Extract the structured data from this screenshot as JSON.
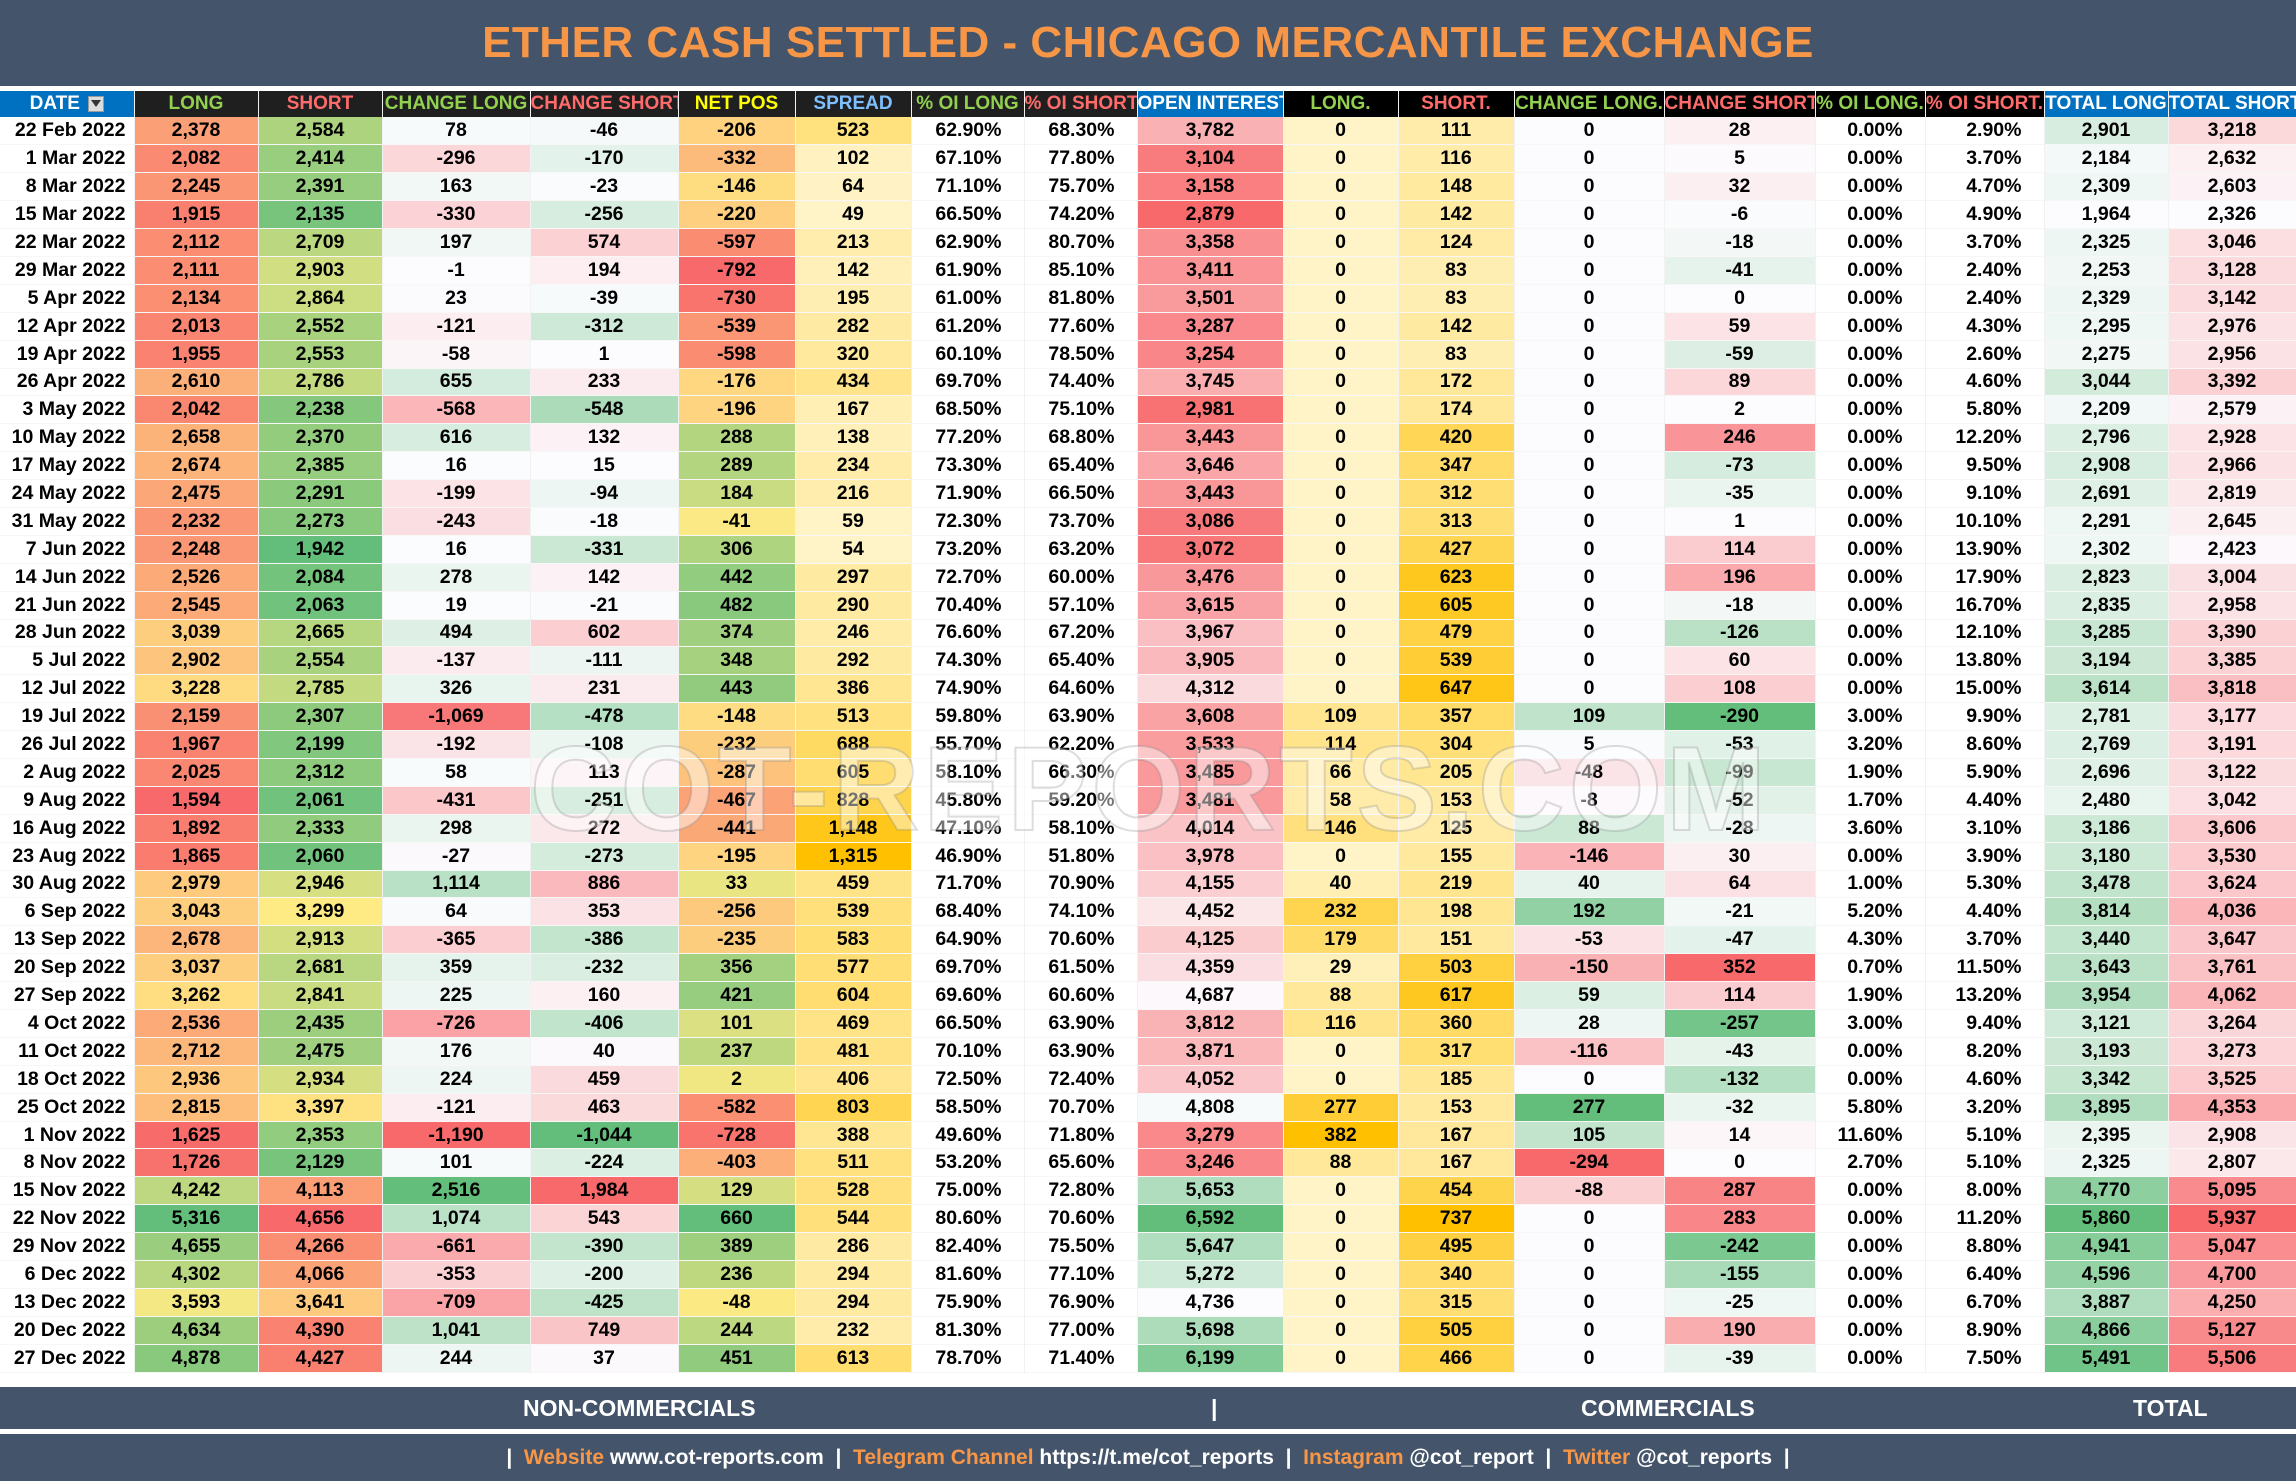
{
  "title": "ETHER CASH SETTLED - CHICAGO MERCANTILE EXCHANGE",
  "watermark": "COT-REPORTS.COM",
  "headers": [
    {
      "label": "DATE",
      "color": "#ffffff",
      "style": "date"
    },
    {
      "label": "LONG",
      "color": "#92d050",
      "style": "dark"
    },
    {
      "label": "SHORT",
      "color": "#ff6b6b",
      "style": "dark"
    },
    {
      "label": "CHANGE LONG",
      "color": "#92d050",
      "style": "dark"
    },
    {
      "label": "CHANGE SHORT",
      "color": "#ff6b6b",
      "style": "dark"
    },
    {
      "label": "NET POS",
      "color": "#ffff00",
      "style": "dark"
    },
    {
      "label": "SPREAD",
      "color": "#7fbfff",
      "style": "dark"
    },
    {
      "label": "% OI LONG",
      "color": "#92d050",
      "style": "dark"
    },
    {
      "label": "% OI SHORT",
      "color": "#ff6b6b",
      "style": "dark"
    },
    {
      "label": "OPEN INTEREST",
      "color": "#ffffff",
      "style": "blue"
    },
    {
      "label": "LONG.",
      "color": "#92d050",
      "style": "black"
    },
    {
      "label": "SHORT.",
      "color": "#ff6b6b",
      "style": "black"
    },
    {
      "label": "CHANGE LONG.",
      "color": "#92d050",
      "style": "black"
    },
    {
      "label": "CHANGE SHORT.",
      "color": "#ff6b6b",
      "style": "black"
    },
    {
      "label": "% OI LONG.",
      "color": "#92d050",
      "style": "black"
    },
    {
      "label": "% OI SHORT.",
      "color": "#ff6b6b",
      "style": "black"
    },
    {
      "label": "TOTAL LONG",
      "color": "#ffffff",
      "style": "blue"
    },
    {
      "label": "TOTAL SHORT",
      "color": "#ffffff",
      "style": "blue"
    }
  ],
  "rows": [
    [
      "22 Feb 2022",
      "2,378",
      "2,584",
      "78",
      "-46",
      "-206",
      "523",
      "62.90%",
      "68.30%",
      "3,782",
      "0",
      "111",
      "0",
      "28",
      "0.00%",
      "2.90%",
      "2,901",
      "3,218"
    ],
    [
      "1 Mar 2022",
      "2,082",
      "2,414",
      "-296",
      "-170",
      "-332",
      "102",
      "67.10%",
      "77.80%",
      "3,104",
      "0",
      "116",
      "0",
      "5",
      "0.00%",
      "3.70%",
      "2,184",
      "2,632"
    ],
    [
      "8 Mar 2022",
      "2,245",
      "2,391",
      "163",
      "-23",
      "-146",
      "64",
      "71.10%",
      "75.70%",
      "3,158",
      "0",
      "148",
      "0",
      "32",
      "0.00%",
      "4.70%",
      "2,309",
      "2,603"
    ],
    [
      "15 Mar 2022",
      "1,915",
      "2,135",
      "-330",
      "-256",
      "-220",
      "49",
      "66.50%",
      "74.20%",
      "2,879",
      "0",
      "142",
      "0",
      "-6",
      "0.00%",
      "4.90%",
      "1,964",
      "2,326"
    ],
    [
      "22 Mar 2022",
      "2,112",
      "2,709",
      "197",
      "574",
      "-597",
      "213",
      "62.90%",
      "80.70%",
      "3,358",
      "0",
      "124",
      "0",
      "-18",
      "0.00%",
      "3.70%",
      "2,325",
      "3,046"
    ],
    [
      "29 Mar 2022",
      "2,111",
      "2,903",
      "-1",
      "194",
      "-792",
      "142",
      "61.90%",
      "85.10%",
      "3,411",
      "0",
      "83",
      "0",
      "-41",
      "0.00%",
      "2.40%",
      "2,253",
      "3,128"
    ],
    [
      "5 Apr 2022",
      "2,134",
      "2,864",
      "23",
      "-39",
      "-730",
      "195",
      "61.00%",
      "81.80%",
      "3,501",
      "0",
      "83",
      "0",
      "0",
      "0.00%",
      "2.40%",
      "2,329",
      "3,142"
    ],
    [
      "12 Apr 2022",
      "2,013",
      "2,552",
      "-121",
      "-312",
      "-539",
      "282",
      "61.20%",
      "77.60%",
      "3,287",
      "0",
      "142",
      "0",
      "59",
      "0.00%",
      "4.30%",
      "2,295",
      "2,976"
    ],
    [
      "19 Apr 2022",
      "1,955",
      "2,553",
      "-58",
      "1",
      "-598",
      "320",
      "60.10%",
      "78.50%",
      "3,254",
      "0",
      "83",
      "0",
      "-59",
      "0.00%",
      "2.60%",
      "2,275",
      "2,956"
    ],
    [
      "26 Apr 2022",
      "2,610",
      "2,786",
      "655",
      "233",
      "-176",
      "434",
      "69.70%",
      "74.40%",
      "3,745",
      "0",
      "172",
      "0",
      "89",
      "0.00%",
      "4.60%",
      "3,044",
      "3,392"
    ],
    [
      "3 May 2022",
      "2,042",
      "2,238",
      "-568",
      "-548",
      "-196",
      "167",
      "68.50%",
      "75.10%",
      "2,981",
      "0",
      "174",
      "0",
      "2",
      "0.00%",
      "5.80%",
      "2,209",
      "2,579"
    ],
    [
      "10 May 2022",
      "2,658",
      "2,370",
      "616",
      "132",
      "288",
      "138",
      "77.20%",
      "68.80%",
      "3,443",
      "0",
      "420",
      "0",
      "246",
      "0.00%",
      "12.20%",
      "2,796",
      "2,928"
    ],
    [
      "17 May 2022",
      "2,674",
      "2,385",
      "16",
      "15",
      "289",
      "234",
      "73.30%",
      "65.40%",
      "3,646",
      "0",
      "347",
      "0",
      "-73",
      "0.00%",
      "9.50%",
      "2,908",
      "2,966"
    ],
    [
      "24 May 2022",
      "2,475",
      "2,291",
      "-199",
      "-94",
      "184",
      "216",
      "71.90%",
      "66.50%",
      "3,443",
      "0",
      "312",
      "0",
      "-35",
      "0.00%",
      "9.10%",
      "2,691",
      "2,819"
    ],
    [
      "31 May 2022",
      "2,232",
      "2,273",
      "-243",
      "-18",
      "-41",
      "59",
      "72.30%",
      "73.70%",
      "3,086",
      "0",
      "313",
      "0",
      "1",
      "0.00%",
      "10.10%",
      "2,291",
      "2,645"
    ],
    [
      "7 Jun 2022",
      "2,248",
      "1,942",
      "16",
      "-331",
      "306",
      "54",
      "73.20%",
      "63.20%",
      "3,072",
      "0",
      "427",
      "0",
      "114",
      "0.00%",
      "13.90%",
      "2,302",
      "2,423"
    ],
    [
      "14 Jun 2022",
      "2,526",
      "2,084",
      "278",
      "142",
      "442",
      "297",
      "72.70%",
      "60.00%",
      "3,476",
      "0",
      "623",
      "0",
      "196",
      "0.00%",
      "17.90%",
      "2,823",
      "3,004"
    ],
    [
      "21 Jun 2022",
      "2,545",
      "2,063",
      "19",
      "-21",
      "482",
      "290",
      "70.40%",
      "57.10%",
      "3,615",
      "0",
      "605",
      "0",
      "-18",
      "0.00%",
      "16.70%",
      "2,835",
      "2,958"
    ],
    [
      "28 Jun 2022",
      "3,039",
      "2,665",
      "494",
      "602",
      "374",
      "246",
      "76.60%",
      "67.20%",
      "3,967",
      "0",
      "479",
      "0",
      "-126",
      "0.00%",
      "12.10%",
      "3,285",
      "3,390"
    ],
    [
      "5 Jul 2022",
      "2,902",
      "2,554",
      "-137",
      "-111",
      "348",
      "292",
      "74.30%",
      "65.40%",
      "3,905",
      "0",
      "539",
      "0",
      "60",
      "0.00%",
      "13.80%",
      "3,194",
      "3,385"
    ],
    [
      "12 Jul 2022",
      "3,228",
      "2,785",
      "326",
      "231",
      "443",
      "386",
      "74.90%",
      "64.60%",
      "4,312",
      "0",
      "647",
      "0",
      "108",
      "0.00%",
      "15.00%",
      "3,614",
      "3,818"
    ],
    [
      "19 Jul 2022",
      "2,159",
      "2,307",
      "-1,069",
      "-478",
      "-148",
      "513",
      "59.80%",
      "63.90%",
      "3,608",
      "109",
      "357",
      "109",
      "-290",
      "3.00%",
      "9.90%",
      "2,781",
      "3,177"
    ],
    [
      "26 Jul 2022",
      "1,967",
      "2,199",
      "-192",
      "-108",
      "-232",
      "688",
      "55.70%",
      "62.20%",
      "3,533",
      "114",
      "304",
      "5",
      "-53",
      "3.20%",
      "8.60%",
      "2,769",
      "3,191"
    ],
    [
      "2 Aug 2022",
      "2,025",
      "2,312",
      "58",
      "113",
      "-287",
      "605",
      "58.10%",
      "66.30%",
      "3,485",
      "66",
      "205",
      "-48",
      "-99",
      "1.90%",
      "5.90%",
      "2,696",
      "3,122"
    ],
    [
      "9 Aug 2022",
      "1,594",
      "2,061",
      "-431",
      "-251",
      "-467",
      "828",
      "45.80%",
      "59.20%",
      "3,481",
      "58",
      "153",
      "-8",
      "-52",
      "1.70%",
      "4.40%",
      "2,480",
      "3,042"
    ],
    [
      "16 Aug 2022",
      "1,892",
      "2,333",
      "298",
      "272",
      "-441",
      "1,148",
      "47.10%",
      "58.10%",
      "4,014",
      "146",
      "125",
      "88",
      "-28",
      "3.60%",
      "3.10%",
      "3,186",
      "3,606"
    ],
    [
      "23 Aug 2022",
      "1,865",
      "2,060",
      "-27",
      "-273",
      "-195",
      "1,315",
      "46.90%",
      "51.80%",
      "3,978",
      "0",
      "155",
      "-146",
      "30",
      "0.00%",
      "3.90%",
      "3,180",
      "3,530"
    ],
    [
      "30 Aug 2022",
      "2,979",
      "2,946",
      "1,114",
      "886",
      "33",
      "459",
      "71.70%",
      "70.90%",
      "4,155",
      "40",
      "219",
      "40",
      "64",
      "1.00%",
      "5.30%",
      "3,478",
      "3,624"
    ],
    [
      "6 Sep 2022",
      "3,043",
      "3,299",
      "64",
      "353",
      "-256",
      "539",
      "68.40%",
      "74.10%",
      "4,452",
      "232",
      "198",
      "192",
      "-21",
      "5.20%",
      "4.40%",
      "3,814",
      "4,036"
    ],
    [
      "13 Sep 2022",
      "2,678",
      "2,913",
      "-365",
      "-386",
      "-235",
      "583",
      "64.90%",
      "70.60%",
      "4,125",
      "179",
      "151",
      "-53",
      "-47",
      "4.30%",
      "3.70%",
      "3,440",
      "3,647"
    ],
    [
      "20 Sep 2022",
      "3,037",
      "2,681",
      "359",
      "-232",
      "356",
      "577",
      "69.70%",
      "61.50%",
      "4,359",
      "29",
      "503",
      "-150",
      "352",
      "0.70%",
      "11.50%",
      "3,643",
      "3,761"
    ],
    [
      "27 Sep 2022",
      "3,262",
      "2,841",
      "225",
      "160",
      "421",
      "604",
      "69.60%",
      "60.60%",
      "4,687",
      "88",
      "617",
      "59",
      "114",
      "1.90%",
      "13.20%",
      "3,954",
      "4,062"
    ],
    [
      "4 Oct 2022",
      "2,536",
      "2,435",
      "-726",
      "-406",
      "101",
      "469",
      "66.50%",
      "63.90%",
      "3,812",
      "116",
      "360",
      "28",
      "-257",
      "3.00%",
      "9.40%",
      "3,121",
      "3,264"
    ],
    [
      "11 Oct 2022",
      "2,712",
      "2,475",
      "176",
      "40",
      "237",
      "481",
      "70.10%",
      "63.90%",
      "3,871",
      "0",
      "317",
      "-116",
      "-43",
      "0.00%",
      "8.20%",
      "3,193",
      "3,273"
    ],
    [
      "18 Oct 2022",
      "2,936",
      "2,934",
      "224",
      "459",
      "2",
      "406",
      "72.50%",
      "72.40%",
      "4,052",
      "0",
      "185",
      "0",
      "-132",
      "0.00%",
      "4.60%",
      "3,342",
      "3,525"
    ],
    [
      "25 Oct 2022",
      "2,815",
      "3,397",
      "-121",
      "463",
      "-582",
      "803",
      "58.50%",
      "70.70%",
      "4,808",
      "277",
      "153",
      "277",
      "-32",
      "5.80%",
      "3.20%",
      "3,895",
      "4,353"
    ],
    [
      "1 Nov 2022",
      "1,625",
      "2,353",
      "-1,190",
      "-1,044",
      "-728",
      "388",
      "49.60%",
      "71.80%",
      "3,279",
      "382",
      "167",
      "105",
      "14",
      "11.60%",
      "5.10%",
      "2,395",
      "2,908"
    ],
    [
      "8 Nov 2022",
      "1,726",
      "2,129",
      "101",
      "-224",
      "-403",
      "511",
      "53.20%",
      "65.60%",
      "3,246",
      "88",
      "167",
      "-294",
      "0",
      "2.70%",
      "5.10%",
      "2,325",
      "2,807"
    ],
    [
      "15 Nov 2022",
      "4,242",
      "4,113",
      "2,516",
      "1,984",
      "129",
      "528",
      "75.00%",
      "72.80%",
      "5,653",
      "0",
      "454",
      "-88",
      "287",
      "0.00%",
      "8.00%",
      "4,770",
      "5,095"
    ],
    [
      "22 Nov 2022",
      "5,316",
      "4,656",
      "1,074",
      "543",
      "660",
      "544",
      "80.60%",
      "70.60%",
      "6,592",
      "0",
      "737",
      "0",
      "283",
      "0.00%",
      "11.20%",
      "5,860",
      "5,937"
    ],
    [
      "29 Nov 2022",
      "4,655",
      "4,266",
      "-661",
      "-390",
      "389",
      "286",
      "82.40%",
      "75.50%",
      "5,647",
      "0",
      "495",
      "0",
      "-242",
      "0.00%",
      "8.80%",
      "4,941",
      "5,047"
    ],
    [
      "6 Dec 2022",
      "4,302",
      "4,066",
      "-353",
      "-200",
      "236",
      "294",
      "81.60%",
      "77.10%",
      "5,272",
      "0",
      "340",
      "0",
      "-155",
      "0.00%",
      "6.40%",
      "4,596",
      "4,700"
    ],
    [
      "13 Dec 2022",
      "3,593",
      "3,641",
      "-709",
      "-425",
      "-48",
      "294",
      "75.90%",
      "76.90%",
      "4,736",
      "0",
      "315",
      "0",
      "-25",
      "0.00%",
      "6.70%",
      "3,887",
      "4,250"
    ],
    [
      "20 Dec 2022",
      "4,634",
      "4,390",
      "1,041",
      "749",
      "244",
      "232",
      "81.30%",
      "77.00%",
      "5,698",
      "0",
      "505",
      "0",
      "190",
      "0.00%",
      "8.90%",
      "4,866",
      "5,127"
    ],
    [
      "27 Dec 2022",
      "4,878",
      "4,427",
      "244",
      "37",
      "451",
      "613",
      "78.70%",
      "71.40%",
      "6,199",
      "0",
      "466",
      "0",
      "-39",
      "0.00%",
      "7.50%",
      "5,491",
      "5,506"
    ]
  ],
  "footer": {
    "noncommercials": "NON-COMMERCIALS",
    "separator": "|",
    "commercials": "COMMERCIALS",
    "total": "TOTAL"
  },
  "links": {
    "pipe": "|",
    "website_label": "Website",
    "website_value": "www.cot-reports.com",
    "telegram_label": "Telegram Channel",
    "telegram_value": "https://t.me/cot_reports",
    "instagram_label": "Instagram",
    "instagram_value": "@cot_report",
    "twitter_label": "Twitter",
    "twitter_value": "@cot_reports"
  }
}
